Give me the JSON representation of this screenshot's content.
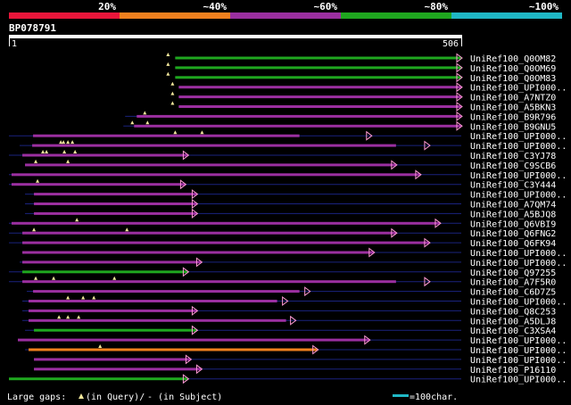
{
  "legend": {
    "segments": [
      {
        "label": "20%",
        "color": "#e8163a"
      },
      {
        "label": "~40%",
        "color": "#f0801e"
      },
      {
        "label": "~60%",
        "color": "#9b2fa0"
      },
      {
        "label": "~80%",
        "color": "#1fa71f"
      },
      {
        "label": "~100%",
        "color": "#1fb7c5"
      }
    ]
  },
  "query": {
    "name": "BP078791",
    "start_label": "1",
    "end_label": "506",
    "length": 506
  },
  "hits": [
    {
      "name": "UniRef100_Q0OM82",
      "color": "#1fa71f",
      "thin": [
        186,
        506
      ],
      "bars": [
        [
          186,
          506
        ]
      ],
      "gaps": [
        178
      ],
      "slashes": [],
      "arrow": 506
    },
    {
      "name": "UniRef100_Q0OM69",
      "color": "#1fa71f",
      "thin": [
        186,
        506
      ],
      "bars": [
        [
          186,
          506
        ]
      ],
      "gaps": [
        178
      ],
      "slashes": [],
      "arrow": 506
    },
    {
      "name": "UniRef100_Q0OM83",
      "color": "#1fa71f",
      "thin": [
        186,
        506
      ],
      "bars": [
        [
          186,
          506
        ]
      ],
      "gaps": [
        178
      ],
      "slashes": [],
      "arrow": 506
    },
    {
      "name": "UniRef100_UPI000..",
      "color": "#9b2fa0",
      "thin": [
        190,
        506
      ],
      "bars": [
        [
          190,
          506
        ]
      ],
      "gaps": [
        183
      ],
      "slashes": [],
      "arrow": 506
    },
    {
      "name": "UniRef100_A7NTZ0",
      "color": "#9b2fa0",
      "thin": [
        190,
        506
      ],
      "bars": [
        [
          190,
          506
        ]
      ],
      "gaps": [
        183
      ],
      "slashes": [],
      "arrow": 506
    },
    {
      "name": "UniRef100_A5BKN3",
      "color": "#9b2fa0",
      "thin": [
        190,
        506
      ],
      "bars": [
        [
          190,
          506
        ]
      ],
      "gaps": [
        183
      ],
      "slashes": [],
      "arrow": 506
    },
    {
      "name": "UniRef100_B9R796",
      "color": "#9b2fa0",
      "thin": [
        130,
        506
      ],
      "bars": [
        [
          143,
          506
        ]
      ],
      "gaps": [
        152
      ],
      "slashes": [],
      "arrow": 506
    },
    {
      "name": "UniRef100_B9GNU5",
      "color": "#9b2fa0",
      "thin": [
        128,
        506
      ],
      "bars": [
        [
          140,
          506
        ]
      ],
      "gaps": [
        138,
        155
      ],
      "slashes": [],
      "arrow": 506
    },
    {
      "name": "UniRef100_UPI000..",
      "color": "#9b2fa0",
      "thin": [
        0,
        506
      ],
      "bars": [
        [
          27,
          325
        ]
      ],
      "gaps": [
        186,
        216
      ],
      "slashes": [],
      "arrow": 405
    },
    {
      "name": "UniRef100_UPI000..",
      "color": "#9b2fa0",
      "thin": [
        12,
        506
      ],
      "bars": [
        [
          26,
          433
        ]
      ],
      "gaps": [
        58,
        61,
        66,
        71
      ],
      "slashes": [],
      "arrow": 470
    },
    {
      "name": "UniRef100_C3YJ78",
      "color": "#9b2fa0",
      "thin": [
        0,
        506
      ],
      "bars": [
        [
          15,
          200
        ]
      ],
      "gaps": [
        38,
        42,
        62,
        74
      ],
      "slashes": [],
      "arrow": 200
    },
    {
      "name": "UniRef100_C9SCB6",
      "color": "#9b2fa0",
      "thin": [
        18,
        506
      ],
      "bars": [
        [
          18,
          433
        ]
      ],
      "gaps": [
        30,
        66
      ],
      "slashes": [],
      "arrow": 433
    },
    {
      "name": "UniRef100_UPI000..",
      "color": "#9b2fa0",
      "thin": [
        0,
        506
      ],
      "bars": [
        [
          3,
          460
        ]
      ],
      "gaps": [],
      "slashes": [],
      "arrow": 460
    },
    {
      "name": "UniRef100_C3Y444",
      "color": "#9b2fa0",
      "thin": [
        0,
        506
      ],
      "bars": [
        [
          3,
          197
        ]
      ],
      "gaps": [
        32
      ],
      "slashes": [],
      "arrow": 197
    },
    {
      "name": "UniRef100_UPI000..",
      "color": "#9b2fa0",
      "thin": [
        18,
        506
      ],
      "bars": [
        [
          28,
          210
        ]
      ],
      "gaps": [],
      "slashes": [],
      "arrow": 210
    },
    {
      "name": "UniRef100_A7QM74",
      "color": "#9b2fa0",
      "thin": [
        18,
        506
      ],
      "bars": [
        [
          28,
          210
        ]
      ],
      "gaps": [],
      "slashes": [],
      "arrow": 210
    },
    {
      "name": "UniRef100_A5BJQ8",
      "color": "#9b2fa0",
      "thin": [
        18,
        506
      ],
      "bars": [
        [
          28,
          210
        ]
      ],
      "gaps": [],
      "slashes": [],
      "arrow": 210
    },
    {
      "name": "UniRef100_Q6VBI9",
      "color": "#9b2fa0",
      "thin": [
        0,
        506
      ],
      "bars": [
        [
          3,
          482
        ]
      ],
      "gaps": [
        76
      ],
      "slashes": [],
      "arrow": 482
    },
    {
      "name": "UniRef100_Q6FNG2",
      "color": "#9b2fa0",
      "thin": [
        0,
        506
      ],
      "bars": [
        [
          15,
          433
        ]
      ],
      "gaps": [
        28,
        132
      ],
      "slashes": [],
      "arrow": 433
    },
    {
      "name": "UniRef100_Q6FK94",
      "color": "#9b2fa0",
      "thin": [
        0,
        506
      ],
      "bars": [
        [
          15,
          470
        ]
      ],
      "gaps": [],
      "slashes": [],
      "arrow": 470
    },
    {
      "name": "UniRef100_UPI000..",
      "color": "#9b2fa0",
      "thin": [
        15,
        506
      ],
      "bars": [
        [
          15,
          408
        ]
      ],
      "gaps": [],
      "slashes": [],
      "arrow": 408
    },
    {
      "name": "UniRef100_UPI000..",
      "color": "#9b2fa0",
      "thin": [
        12,
        506
      ],
      "bars": [
        [
          15,
          215
        ]
      ],
      "gaps": [],
      "slashes": [],
      "arrow": 215
    },
    {
      "name": "UniRef100_Q97255",
      "color": "#1fa71f",
      "thin": [
        0,
        506
      ],
      "bars": [
        [
          15,
          200
        ]
      ],
      "gaps": [],
      "slashes": [],
      "arrow": 200
    },
    {
      "name": "UniRef100_A7F5R0",
      "color": "#9b2fa0",
      "thin": [
        0,
        506
      ],
      "bars": [
        [
          15,
          433
        ]
      ],
      "gaps": [
        30,
        50,
        118
      ],
      "slashes": [],
      "arrow": 470
    },
    {
      "name": "UniRef100_C6D7Z5",
      "color": "#9b2fa0",
      "thin": [
        20,
        506
      ],
      "bars": [
        [
          27,
          325
        ]
      ],
      "gaps": [],
      "slashes": [],
      "arrow": 336
    },
    {
      "name": "UniRef100_UPI000..",
      "color": "#9b2fa0",
      "thin": [
        15,
        506
      ],
      "bars": [
        [
          22,
          300
        ]
      ],
      "gaps": [
        66,
        83,
        95
      ],
      "slashes": [],
      "arrow": 311
    },
    {
      "name": "UniRef100_Q8C253",
      "color": "#9b2fa0",
      "thin": [
        15,
        506
      ],
      "bars": [
        [
          22,
          210
        ]
      ],
      "gaps": [],
      "slashes": [],
      "arrow": 210
    },
    {
      "name": "UniRef100_A5DLJ8",
      "color": "#9b2fa0",
      "thin": [
        15,
        506
      ],
      "bars": [
        [
          22,
          310
        ]
      ],
      "gaps": [
        56,
        66,
        78
      ],
      "slashes": [],
      "arrow": 320
    },
    {
      "name": "UniRef100_C3XSA4",
      "color": "#1fa71f",
      "thin": [
        18,
        506
      ],
      "bars": [
        [
          28,
          210
        ]
      ],
      "gaps": [],
      "slashes": [],
      "arrow": 210
    },
    {
      "name": "UniRef100_UPI000..",
      "color": "#9b2fa0",
      "thin": [
        10,
        506
      ],
      "bars": [
        [
          10,
          403
        ]
      ],
      "gaps": [],
      "slashes": [],
      "arrow": 403
    },
    {
      "name": "UniRef100_UPI000..",
      "color": "#f0801e",
      "thin": [
        18,
        506
      ],
      "bars": [
        [
          22,
          345
        ]
      ],
      "gaps": [
        102
      ],
      "slashes": [],
      "arrow": 345
    },
    {
      "name": "UniRef100_UPI000..",
      "color": "#9b2fa0",
      "thin": [
        28,
        506
      ],
      "bars": [
        [
          28,
          203
        ]
      ],
      "gaps": [],
      "slashes": [],
      "arrow": 203
    },
    {
      "name": "UniRef100_P16110",
      "color": "#9b2fa0",
      "thin": [
        28,
        506
      ],
      "bars": [
        [
          28,
          215
        ]
      ],
      "gaps": [],
      "slashes": [],
      "arrow": 215
    },
    {
      "name": "UniRef100_UPI000..",
      "color": "#1fa71f",
      "thin": [
        0,
        506
      ],
      "bars": [
        [
          0,
          200
        ]
      ],
      "gaps": [],
      "slashes": [],
      "arrow": 200
    }
  ],
  "footer": {
    "gaps_label": "Large gaps:",
    "query_label": "(in Query)/",
    "subject_label": "- (in Subject)",
    "scale_label": "=100char.",
    "scale_color": "#1fb7c5",
    "scale_chars": 100
  }
}
